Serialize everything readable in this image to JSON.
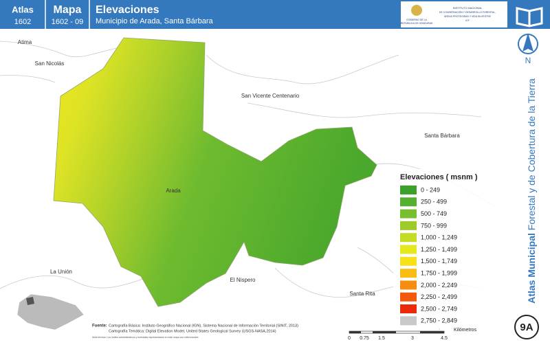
{
  "header": {
    "atlas_label": "Atlas",
    "atlas_number": "1602",
    "map_label": "Mapa",
    "map_number": "1602 - 09",
    "title": "Elevaciones",
    "subtitle": "Municipio de Arada, Santa Bárbara",
    "logo_left": [
      "GOBIERNO DE LA",
      "REPÚBLICA DE HONDURAS"
    ],
    "logo_right": [
      "INSTITUTO NACIONAL",
      "DE CONSERVACIÓN Y DESARROLLO FORESTAL,",
      "ÁREAS PROTEGIDAS Y VIDA SILVESTRE",
      "ICF"
    ]
  },
  "places": [
    "Atima",
    "San Nicolás",
    "San Vicente Centenario",
    "Santa Bárbara",
    "Arada",
    "La Unión",
    "El Nispero",
    "Santa Rita"
  ],
  "legend": {
    "title": "Elevaciones ( msnm )",
    "items": [
      {
        "label": "0 - 249",
        "color": "#3aa12a"
      },
      {
        "label": "250 - 499",
        "color": "#56b030"
      },
      {
        "label": "500 - 749",
        "color": "#78bf2e"
      },
      {
        "label": "750 - 999",
        "color": "#9dcb2a"
      },
      {
        "label": "1,000 - 1,249",
        "color": "#c5dc22"
      },
      {
        "label": "1,250 - 1,499",
        "color": "#e6e81e"
      },
      {
        "label": "1,500 - 1,749",
        "color": "#f7e21a"
      },
      {
        "label": "1,750 - 1,999",
        "color": "#f9bd14"
      },
      {
        "label": "2,000 - 2,249",
        "color": "#f68d10"
      },
      {
        "label": "2,250 - 2,499",
        "color": "#f2590c"
      },
      {
        "label": "2,500 - 2,749",
        "color": "#ea2a0a"
      },
      {
        "label": "2,750 - 2,849",
        "color": "#c8c8c8"
      }
    ]
  },
  "side": {
    "north": "N",
    "series_bold": "Atlas Municipal",
    "series_rest": "Forestal y de Cobertura de la Tierra",
    "sheet": "9A"
  },
  "footer": {
    "source_label": "Fuente:",
    "source_lines": [
      "Cartografía Básica: Instituto Geográfico Nacional (IGN), Sistema Nacional de Información Territorial (SINIT, 2013)",
      "Cartografía Temática: Digital Elevation Model, United States Geological Survey (USGS-NASA,2014)"
    ],
    "note": "Nota técnica: Los límites administrativos y forestales representados en este mapa son referenciales",
    "scale_ticks": [
      "0",
      "0.75",
      "1.5",
      "3",
      "4.5"
    ],
    "scale_unit": "Kilómetros"
  }
}
